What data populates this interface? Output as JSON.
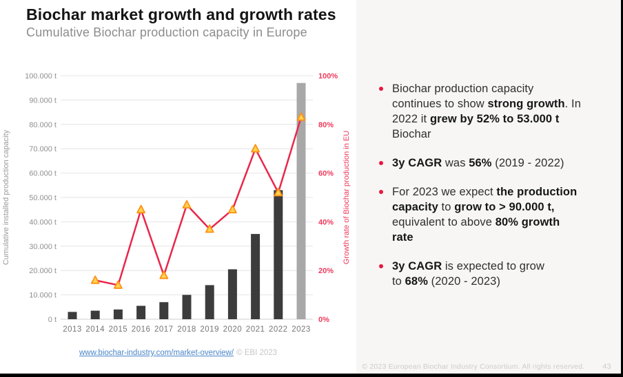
{
  "header": {
    "title": "Biochar market growth and growth rates",
    "subtitle": "Cumulative Biochar production capacity in Europe"
  },
  "chart_data": {
    "type": "bar",
    "subtype": "combo-bar-line-dual-axis",
    "categories": [
      "2013",
      "2014",
      "2015",
      "2016",
      "2017",
      "2018",
      "2019",
      "2020",
      "2021",
      "2022",
      "2023"
    ],
    "series": [
      {
        "name": "Cumulative installed production capacity",
        "type": "bar",
        "unit": "t",
        "values": [
          3000,
          3500,
          4000,
          5500,
          7000,
          10000,
          14000,
          20500,
          35000,
          53000,
          97000
        ],
        "color_default": "#3c3c3c",
        "color_last": "#a8a8a8"
      },
      {
        "name": "Growth rate of Biochar production in EU",
        "type": "line",
        "unit": "%",
        "values": [
          null,
          16,
          14,
          45,
          18,
          47,
          37,
          45,
          70,
          52,
          83
        ],
        "line_color": "#e9264a",
        "marker": "triangle",
        "marker_fill": "#ffd34f",
        "marker_stroke": "#ff9015"
      }
    ],
    "left_axis": {
      "label": "Cumulative installed production capacity",
      "min": 0,
      "max": 100000,
      "step": 10000,
      "tick_labels": [
        "0 t",
        "10.000 t",
        "20.000 t",
        "30.000 t",
        "40.000 t",
        "50.000 t",
        "60.000 t",
        "70.000 t",
        "80.000 t",
        "90.000 t",
        "100.000 t"
      ],
      "color": "#8f8f8f"
    },
    "right_axis": {
      "label": "Growth rate of Biochar production in EU",
      "min": 0,
      "max": 100,
      "step": 20,
      "tick_labels": [
        "0%",
        "20%",
        "40%",
        "60%",
        "80%",
        "100%"
      ],
      "color": "#ee3a5c"
    },
    "grid": true,
    "gridline_color": "#e4e4e4",
    "x_label_color": "#767676",
    "legend_position": "none"
  },
  "chart_footer": {
    "link": "www.biochar-industry.com/market-overview/",
    "copyright": "© EBI 2023"
  },
  "right_panel": {
    "bullets": [
      [
        {
          "t": "Biochar production capacity"
        },
        {
          "br": true
        },
        {
          "t": "continues to show "
        },
        {
          "t": "strong growth",
          "b": true
        },
        {
          "t": ". In"
        },
        {
          "br": true
        },
        {
          "t": "2022 it "
        },
        {
          "t": "grew by 52% to 53.000 t",
          "b": true
        },
        {
          "br": true
        },
        {
          "t": "Biochar"
        }
      ],
      [
        {
          "t": "3y CAGR",
          "b": true
        },
        {
          "t": " was "
        },
        {
          "t": "56%",
          "b": true
        },
        {
          "t": " (2019 - 2022)"
        }
      ],
      [
        {
          "t": "For 2023 we expect "
        },
        {
          "t": "the production",
          "b": true
        },
        {
          "br": true
        },
        {
          "t": "capacity",
          "b": true
        },
        {
          "t": " to "
        },
        {
          "t": "grow to > 90.000 t,",
          "b": true
        },
        {
          "br": true
        },
        {
          "t": "equivalent to above "
        },
        {
          "t": "80% growth",
          "b": true
        },
        {
          "br": true
        },
        {
          "t": "rate",
          "b": true
        }
      ],
      [
        {
          "t": "3y CAGR",
          "b": true
        },
        {
          "t": " is expected to grow"
        },
        {
          "br": true
        },
        {
          "t": "to "
        },
        {
          "t": "68%",
          "b": true
        },
        {
          "t": " (2020 - 2023)"
        }
      ]
    ],
    "bullet_color": "#e8173d"
  },
  "footer": {
    "copyright": "© 2023 European Biochar Industry Consortium. All rights reserved.",
    "page_number": "43"
  }
}
